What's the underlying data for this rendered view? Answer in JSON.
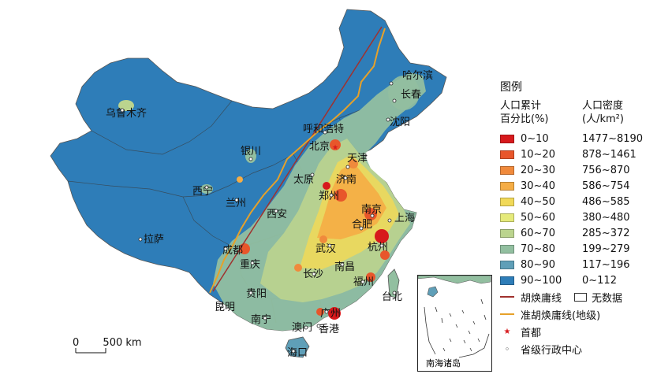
{
  "map": {
    "cities": [
      {
        "id": "harbin",
        "name": "哈尔滨"
      },
      {
        "id": "changchun",
        "name": "长春"
      },
      {
        "id": "shenyang",
        "name": "沈阳"
      },
      {
        "id": "urumqi",
        "name": "乌鲁木齐"
      },
      {
        "id": "hohhot",
        "name": "呼和浩特"
      },
      {
        "id": "beijing",
        "name": "北京"
      },
      {
        "id": "tianjin",
        "name": "天津"
      },
      {
        "id": "yinchuan",
        "name": "银川"
      },
      {
        "id": "taiyuan",
        "name": "太原"
      },
      {
        "id": "shijiazhuang",
        "name": "济南"
      },
      {
        "id": "xining",
        "name": "西宁"
      },
      {
        "id": "lanzhou",
        "name": "兰州"
      },
      {
        "id": "zhengzhou",
        "name": "郑州"
      },
      {
        "id": "xian",
        "name": "西安"
      },
      {
        "id": "nanjing",
        "name": "南京"
      },
      {
        "id": "hefei",
        "name": "合肥"
      },
      {
        "id": "shanghai",
        "name": "上海"
      },
      {
        "id": "lhasa",
        "name": "拉萨"
      },
      {
        "id": "chengdu",
        "name": "成都"
      },
      {
        "id": "wuhan",
        "name": "武汉"
      },
      {
        "id": "hangzhou",
        "name": "杭州"
      },
      {
        "id": "chongqing",
        "name": "重庆"
      },
      {
        "id": "nanchang",
        "name": "南昌"
      },
      {
        "id": "changsha",
        "name": "长沙"
      },
      {
        "id": "fuzhou",
        "name": "福州"
      },
      {
        "id": "guiyang",
        "name": "贵阳"
      },
      {
        "id": "kunming",
        "name": "昆明"
      },
      {
        "id": "taipei",
        "name": "台北"
      },
      {
        "id": "nanning",
        "name": "南宁"
      },
      {
        "id": "guangzhou",
        "name": "广州"
      },
      {
        "id": "macao",
        "name": "澳门"
      },
      {
        "id": "hongkong",
        "name": "香港"
      },
      {
        "id": "haikou",
        "name": "海口"
      }
    ],
    "inset_label": "南海诸岛",
    "scale_zero": "0",
    "scale_label": "500 km"
  },
  "legend": {
    "title": "图例",
    "col1_header": "人口累计\n百分比(%)",
    "col2_header": "人口密度\n(人/km²)",
    "rows": [
      {
        "pct": "0~10",
        "density": "1477~8190",
        "color": "#d7191c"
      },
      {
        "pct": "10~20",
        "density": "878~1461",
        "color": "#e8562b"
      },
      {
        "pct": "20~30",
        "density": "756~870",
        "color": "#f08a3c"
      },
      {
        "pct": "30~40",
        "density": "586~754",
        "color": "#f5ad45"
      },
      {
        "pct": "40~50",
        "density": "486~585",
        "color": "#f1d958"
      },
      {
        "pct": "50~60",
        "density": "380~480",
        "color": "#e5ea7a"
      },
      {
        "pct": "60~70",
        "density": "285~372",
        "color": "#bbd48e"
      },
      {
        "pct": "70~80",
        "density": "199~279",
        "color": "#92bfa0"
      },
      {
        "pct": "80~90",
        "density": "117~196",
        "color": "#5f9fb8"
      },
      {
        "pct": "90~100",
        "density": "0~112",
        "color": "#2e7db8"
      }
    ],
    "hu_line_label": "胡焕庸线",
    "hu_line_color": "#a0312e",
    "no_data_label": "无数据",
    "quasi_line_label": "准胡焕庸线(地级)",
    "quasi_line_color": "#e6a12a",
    "capital_label": "首都",
    "capital_symbol": "★",
    "center_label": "省级行政中心",
    "center_symbol": "◦"
  }
}
